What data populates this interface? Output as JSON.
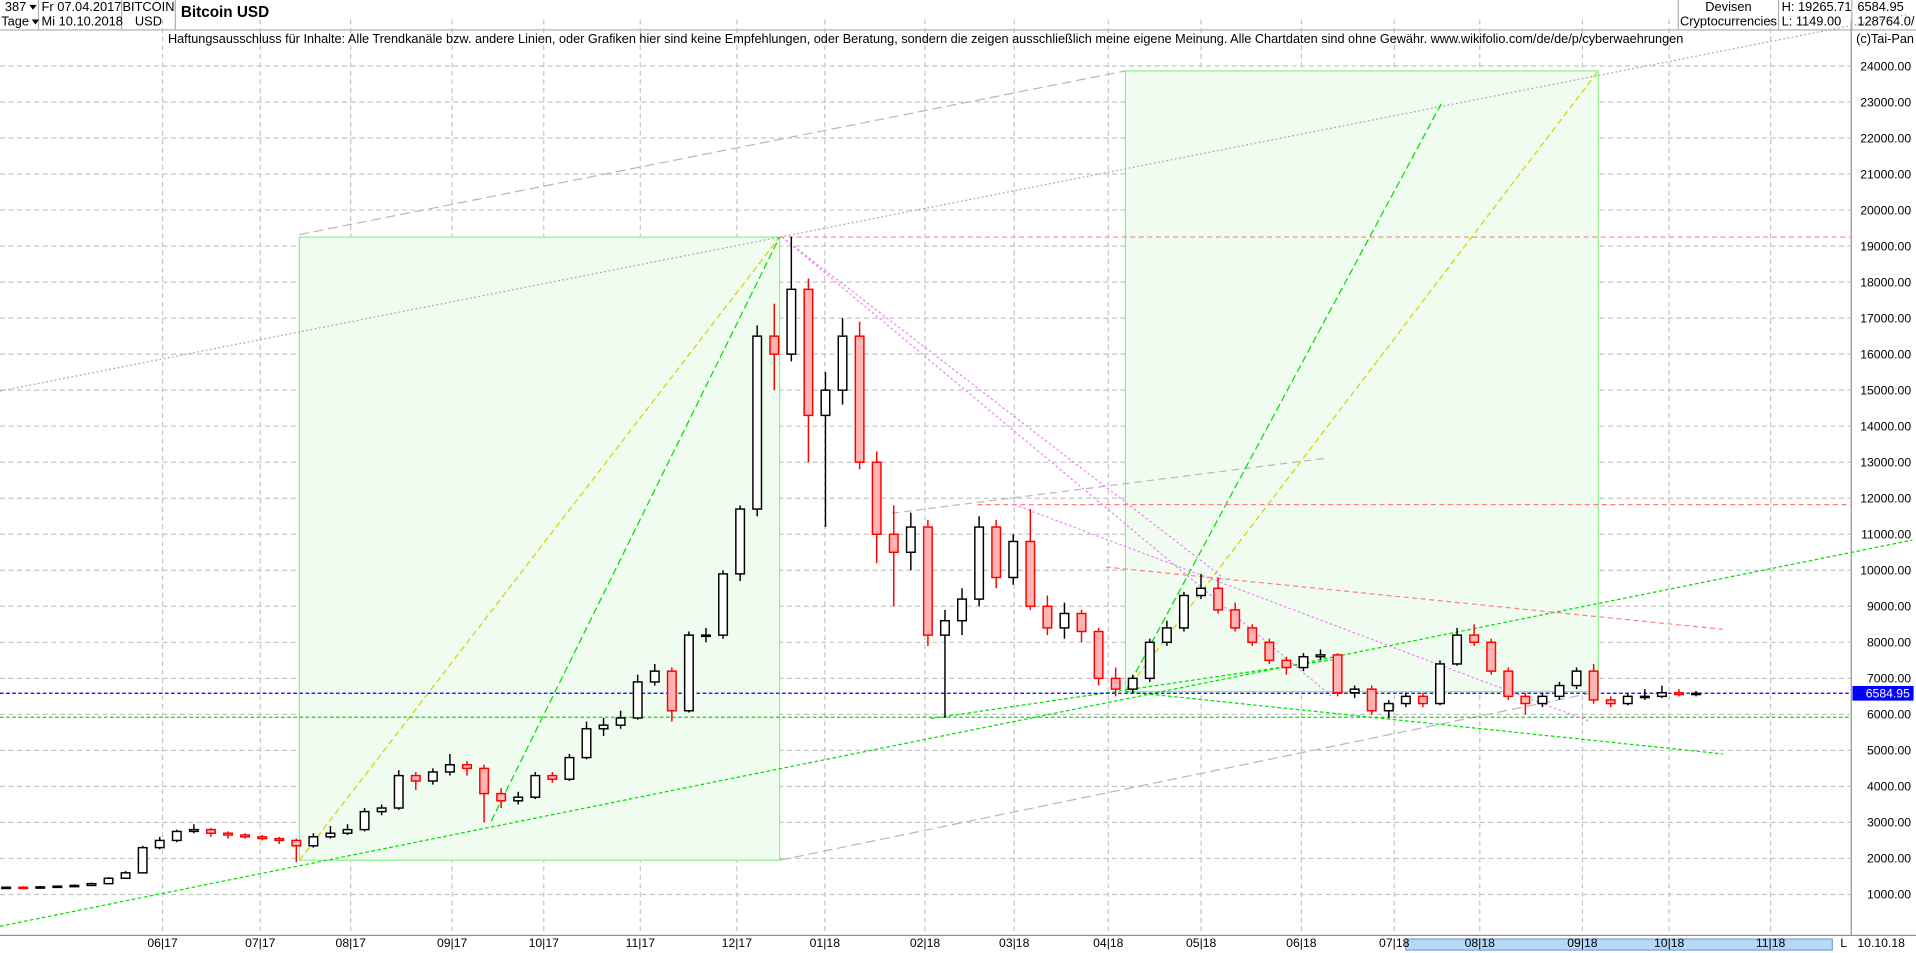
{
  "header": {
    "bars_count": "387",
    "period": "Tage",
    "date_from": "Fr 07.04.2017",
    "date_to": "Mi 10.10.2018",
    "symbol_line1": "BITCOIN",
    "symbol_line2": "USD",
    "title": "Bitcoin USD",
    "category_line1": "Devisen",
    "category_line2": "Cryptocurrencies",
    "high_label": "H: 19265.71",
    "low_label": "L: 1149.00",
    "last_value": "6584.95",
    "volume": "128764.0/"
  },
  "disclaimer": "Haftungsausschluss für Inhalte: Alle Trendkanäle bzw. andere Linien, oder Grafiken hier sind keine Empfehlungen, oder Beratung, sondern die zeigen ausschließlich meine eigene Meinung. Alle Chartdaten sind ohne Gewähr.  www.wikifolio.com/de/de/p/cyberwaehrungen",
  "copyright": "(c)Tai-Pan",
  "footer": {
    "scroll_marker": "L",
    "end_date": "10.10.18"
  },
  "chart_data": {
    "type": "candlestick",
    "title": "Bitcoin USD",
    "ylim": [
      0,
      25000
    ],
    "grid": true,
    "yticks": [
      "24000.00",
      "23000.00",
      "22000.00",
      "21000.00",
      "20000.00",
      "19000.00",
      "18000.00",
      "17000.00",
      "16000.00",
      "15000.00",
      "14000.00",
      "13000.00",
      "12000.00",
      "11000.00",
      "10000.00",
      "9000.00",
      "8000.00",
      "7000.00",
      "6000.00",
      "5000.00",
      "4000.00",
      "3000.00",
      "2000.00",
      "1000.00"
    ],
    "xticks": [
      "06|17",
      "07|17",
      "08|17",
      "09|17",
      "10|17",
      "11|17",
      "12|17",
      "01|18",
      "02|18",
      "03|18",
      "04|18",
      "05|18",
      "06|18",
      "07|18",
      "08|18",
      "09|18",
      "10|18",
      "11|18"
    ],
    "last_price": 6584.95,
    "last_price_label": "6584.95",
    "colors": {
      "up_body": "#ffffff",
      "up_line": "#000000",
      "down_body": "#ffb4b4",
      "down_line": "#ff0000",
      "last_price_line": "#0000ff",
      "box_fill": "#f0fcf0",
      "box_line": "#90ee90"
    },
    "ohlc": [
      [
        1180,
        1220,
        1160,
        1200
      ],
      [
        1200,
        1230,
        1170,
        1190
      ],
      [
        1190,
        1240,
        1180,
        1210
      ],
      [
        1210,
        1250,
        1200,
        1230
      ],
      [
        1230,
        1280,
        1210,
        1250
      ],
      [
        1250,
        1330,
        1240,
        1300
      ],
      [
        1300,
        1480,
        1290,
        1450
      ],
      [
        1450,
        1650,
        1430,
        1600
      ],
      [
        1600,
        2350,
        1580,
        2300
      ],
      [
        2300,
        2600,
        2250,
        2500
      ],
      [
        2500,
        2800,
        2450,
        2750
      ],
      [
        2750,
        2950,
        2700,
        2800
      ],
      [
        2800,
        2850,
        2600,
        2700
      ],
      [
        2700,
        2750,
        2550,
        2650
      ],
      [
        2650,
        2700,
        2550,
        2600
      ],
      [
        2600,
        2650,
        2500,
        2550
      ],
      [
        2550,
        2600,
        2400,
        2500
      ],
      [
        2500,
        2550,
        1900,
        2350
      ],
      [
        2350,
        2700,
        2300,
        2600
      ],
      [
        2600,
        2900,
        2550,
        2700
      ],
      [
        2700,
        2950,
        2650,
        2800
      ],
      [
        2800,
        3400,
        2750,
        3300
      ],
      [
        3300,
        3500,
        3200,
        3400
      ],
      [
        3400,
        4450,
        3350,
        4300
      ],
      [
        4300,
        4400,
        3900,
        4150
      ],
      [
        4150,
        4500,
        4050,
        4400
      ],
      [
        4400,
        4900,
        4300,
        4600
      ],
      [
        4600,
        4700,
        4300,
        4500
      ],
      [
        4500,
        4600,
        3000,
        3800
      ],
      [
        3800,
        3950,
        3400,
        3600
      ],
      [
        3600,
        3850,
        3500,
        3700
      ],
      [
        3700,
        4400,
        3650,
        4300
      ],
      [
        4300,
        4400,
        4100,
        4200
      ],
      [
        4200,
        4900,
        4150,
        4800
      ],
      [
        4800,
        5800,
        4750,
        5600
      ],
      [
        5600,
        5900,
        5400,
        5700
      ],
      [
        5700,
        6100,
        5600,
        5900
      ],
      [
        5900,
        7100,
        5850,
        6900
      ],
      [
        6900,
        7400,
        6800,
        7200
      ],
      [
        7200,
        7300,
        5800,
        6100
      ],
      [
        6100,
        8300,
        6050,
        8200
      ],
      [
        8200,
        8400,
        8000,
        8200
      ],
      [
        8200,
        10000,
        8100,
        9900
      ],
      [
        9900,
        11800,
        9700,
        11700
      ],
      [
        11700,
        16800,
        11500,
        16500
      ],
      [
        16500,
        17400,
        15000,
        16000
      ],
      [
        16000,
        19265,
        15800,
        17800
      ],
      [
        17800,
        18100,
        13000,
        14300
      ],
      [
        14300,
        15500,
        11200,
        15000
      ],
      [
        15000,
        17000,
        14600,
        16500
      ],
      [
        16500,
        16900,
        12800,
        13000
      ],
      [
        13000,
        13300,
        10200,
        11000
      ],
      [
        11000,
        11800,
        9000,
        10500
      ],
      [
        10500,
        11600,
        10000,
        11200
      ],
      [
        11200,
        11400,
        7900,
        8200
      ],
      [
        8200,
        8900,
        5900,
        8600
      ],
      [
        8600,
        9500,
        8200,
        9200
      ],
      [
        9200,
        11500,
        9000,
        11200
      ],
      [
        11200,
        11400,
        9500,
        9800
      ],
      [
        9800,
        11000,
        9600,
        10800
      ],
      [
        10800,
        11700,
        8900,
        9000
      ],
      [
        9000,
        9300,
        8200,
        8400
      ],
      [
        8400,
        9100,
        8100,
        8800
      ],
      [
        8800,
        8900,
        8000,
        8300
      ],
      [
        8300,
        8400,
        6800,
        7000
      ],
      [
        7000,
        7300,
        6500,
        6700
      ],
      [
        6700,
        7100,
        6600,
        7000
      ],
      [
        7000,
        8100,
        6900,
        8000
      ],
      [
        8000,
        8600,
        7900,
        8400
      ],
      [
        8400,
        9400,
        8300,
        9300
      ],
      [
        9300,
        9900,
        9200,
        9500
      ],
      [
        9500,
        9800,
        8800,
        8900
      ],
      [
        8900,
        9100,
        8300,
        8400
      ],
      [
        8400,
        8500,
        7900,
        8000
      ],
      [
        8000,
        8100,
        7400,
        7500
      ],
      [
        7500,
        7600,
        7100,
        7300
      ],
      [
        7300,
        7700,
        7200,
        7600
      ],
      [
        7600,
        7800,
        7500,
        7650
      ],
      [
        7650,
        7700,
        6500,
        6600
      ],
      [
        6600,
        6800,
        6450,
        6700
      ],
      [
        6700,
        6800,
        6000,
        6100
      ],
      [
        6100,
        6400,
        5900,
        6300
      ],
      [
        6300,
        6600,
        6200,
        6500
      ],
      [
        6500,
        6600,
        6200,
        6300
      ],
      [
        6300,
        7500,
        6250,
        7400
      ],
      [
        7400,
        8400,
        7350,
        8200
      ],
      [
        8200,
        8500,
        7900,
        8000
      ],
      [
        8000,
        8100,
        7100,
        7200
      ],
      [
        7200,
        7300,
        6400,
        6500
      ],
      [
        6500,
        6600,
        6000,
        6300
      ],
      [
        6300,
        6600,
        6200,
        6500
      ],
      [
        6500,
        6900,
        6400,
        6800
      ],
      [
        6800,
        7300,
        6700,
        7200
      ],
      [
        7200,
        7400,
        6300,
        6400
      ],
      [
        6400,
        6500,
        6200,
        6300
      ],
      [
        6300,
        6600,
        6250,
        6500
      ],
      [
        6500,
        6700,
        6400,
        6500
      ],
      [
        6500,
        6800,
        6450,
        6600
      ],
      [
        6600,
        6700,
        6500,
        6550
      ],
      [
        6550,
        6650,
        6500,
        6585
      ]
    ]
  }
}
